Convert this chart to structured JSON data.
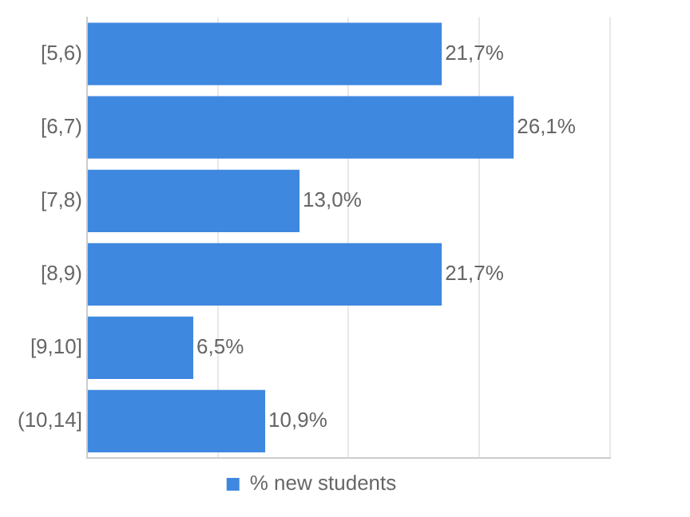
{
  "chart_data": {
    "type": "bar",
    "orientation": "horizontal",
    "categories": [
      "[5,6)",
      "[6,7)",
      "[7,8)",
      "[8,9)",
      "[9,10]",
      "(10,14]"
    ],
    "series": [
      {
        "name": "% new students",
        "color": "#3f88e0",
        "values": [
          21.7,
          26.1,
          13.0,
          21.7,
          6.5,
          10.9
        ],
        "value_labels": [
          "21,7%",
          "26,1%",
          "13,0%",
          "21,7%",
          "6,5%",
          "10,9%"
        ]
      }
    ],
    "xlim": [
      0,
      32
    ],
    "xticks": [
      {
        "value": 0,
        "label": null
      },
      {
        "value": 8,
        "label": null
      },
      {
        "value": 16,
        "label": null
      },
      {
        "value": 24,
        "label": null
      },
      {
        "value": 32,
        "label": null
      }
    ],
    "tick_labels": "y",
    "grid": "x",
    "legend": "bottom"
  }
}
